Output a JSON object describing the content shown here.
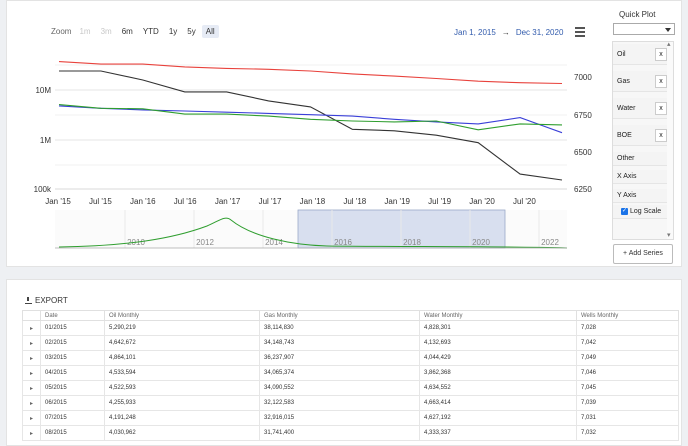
{
  "zoom": {
    "label": "Zoom",
    "buttons": [
      {
        "label": "1m",
        "state": "disabled"
      },
      {
        "label": "3m",
        "state": "disabled"
      },
      {
        "label": "6m",
        "state": "normal"
      },
      {
        "label": "YTD",
        "state": "normal"
      },
      {
        "label": "1y",
        "state": "normal"
      },
      {
        "label": "5y",
        "state": "normal"
      },
      {
        "label": "All",
        "state": "active"
      }
    ]
  },
  "range": {
    "from": "Jan 1, 2015",
    "arrow": "→",
    "to": "Dec 31, 2020"
  },
  "chart_data": {
    "type": "line",
    "x_labels": [
      "Jan '15",
      "Jul '15",
      "Jan '16",
      "Jul '16",
      "Jan '17",
      "Jul '17",
      "Jan '18",
      "Jul '18",
      "Jan '19",
      "Jul '19",
      "Jan '20",
      "Jul '20"
    ],
    "y_left_ticks": [
      "10M",
      "1M",
      "100k"
    ],
    "y_right_ticks": [
      "7000",
      "6750",
      "6500",
      "6250"
    ],
    "y_left_scale": "log",
    "grid": true,
    "series": [
      {
        "color": "#e8423c",
        "values": [
          37000000,
          33000000,
          33000000,
          29000000,
          27000000,
          26000000,
          24000000,
          21000000,
          19000000,
          17000000,
          15000000,
          14000000,
          13500000
        ]
      },
      {
        "color": "#333333",
        "values": [
          7040,
          7040,
          6980,
          6900,
          6900,
          6840,
          6800,
          6650,
          6640,
          6610,
          6560,
          6350,
          6310
        ]
      },
      {
        "color": "#3a3fd8",
        "values": [
          4800000,
          4300000,
          4000000,
          3800000,
          3600000,
          3400000,
          3200000,
          3000000,
          2600000,
          2300000,
          2100000,
          2800000,
          1400000
        ]
      },
      {
        "color": "#2f9e2f",
        "values": [
          5100000,
          4300000,
          4200000,
          3300000,
          3300000,
          3000000,
          2600000,
          2400000,
          2300000,
          2400000,
          1600000,
          2100000,
          2000000
        ]
      }
    ]
  },
  "navigator": {
    "labels": [
      "2010",
      "2012",
      "2014",
      "2016",
      "2018",
      "2020",
      "2022"
    ]
  },
  "quick_plot": {
    "title": "Quick Plot",
    "items": [
      {
        "label": "Oil",
        "remove": "x"
      },
      {
        "label": "Gas",
        "remove": "x"
      },
      {
        "label": "Water",
        "remove": "x"
      },
      {
        "label": "BOE",
        "remove": "x"
      }
    ],
    "options": [
      "Other",
      "X Axis",
      "Y Axis"
    ],
    "log_scale_label": "Log Scale",
    "add_series_label": "+ Add Series"
  },
  "table": {
    "export_label": "EXPORT",
    "headers": [
      "Date",
      "Oil Monthly",
      "Gas Monthly",
      "Water Monthly",
      "Wells Monthly"
    ],
    "rows": [
      [
        "01/2015",
        "5,290,219",
        "38,114,830",
        "4,828,301",
        "7,028"
      ],
      [
        "02/2015",
        "4,642,672",
        "34,148,743",
        "4,132,693",
        "7,042"
      ],
      [
        "03/2015",
        "4,864,101",
        "36,237,907",
        "4,044,429",
        "7,049"
      ],
      [
        "04/2015",
        "4,533,594",
        "34,065,374",
        "3,862,368",
        "7,046"
      ],
      [
        "05/2015",
        "4,522,593",
        "34,090,552",
        "4,634,552",
        "7,045"
      ],
      [
        "06/2015",
        "4,255,933",
        "32,122,583",
        "4,663,414",
        "7,039"
      ],
      [
        "07/2015",
        "4,191,248",
        "32,916,015",
        "4,627,192",
        "7,031"
      ],
      [
        "08/2015",
        "4,030,962",
        "31,741,400",
        "4,333,337",
        "7,032"
      ]
    ]
  }
}
